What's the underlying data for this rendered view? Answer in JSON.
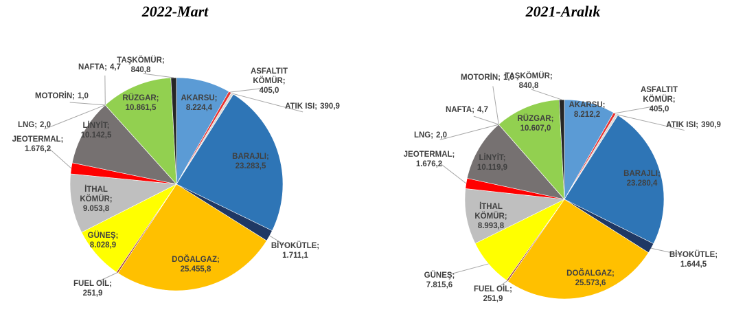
{
  "chart_data": [
    {
      "type": "pie",
      "title": "2022-Mart",
      "categories": [
        "AKARSU;",
        "ASFALTIT KÖMÜR;",
        "ATIK ISI;",
        "BARAJLI;",
        "BİYOKÜTLE;",
        "DOĞALGAZ;",
        "FUEL OİL;",
        "GÜNEŞ;",
        "İTHAL KÖMÜR;",
        "JEOTERMAL;",
        "LİNYİT;",
        "LNG;",
        "MOTORİN;",
        "NAFTA;",
        "RÜZGAR;",
        "TAŞKÖMÜR;"
      ],
      "values": [
        8224.4,
        405.0,
        390.9,
        23283.5,
        1711.1,
        25455.8,
        251.9,
        8028.9,
        9053.8,
        1676.2,
        10142.5,
        2.0,
        1.0,
        4.7,
        10861.5,
        840.8
      ],
      "value_labels": [
        "8.224,4",
        "405,0",
        "390,9",
        "23.283,5",
        "1.711,1",
        "25.455,8",
        "251,9",
        "8.028,9",
        "9.053,8",
        "1.676,2",
        "10.142,5",
        "2,0",
        "1,0",
        "4,7",
        "10.861,5",
        "840,8"
      ],
      "colors": [
        "#5b9bd5",
        "#e8312f",
        "#d9d9d9",
        "#2e75b6",
        "#1f3864",
        "#ffc000",
        "#a5403c",
        "#ffff00",
        "#bfbfbf",
        "#ff0000",
        "#767171",
        "#8faadc",
        "#c9c9c9",
        "#a9d18e",
        "#92d050",
        "#262626"
      ]
    },
    {
      "type": "pie",
      "title": "2021-Aralık",
      "categories": [
        "AKARSU;",
        "ASFALTIT KÖMÜR;",
        "ATIK ISI;",
        "BARAJLI;",
        "BİYOKÜTLE;",
        "DOĞALGAZ;",
        "FUEL OİL;",
        "GÜNEŞ;",
        "İTHAL KÖMÜR;",
        "JEOTERMAL;",
        "LİNYİT;",
        "LNG;",
        "MOTORİN;",
        "NAFTA;",
        "RÜZGAR;",
        "TAŞKÖMÜR;"
      ],
      "values": [
        8212.2,
        405.0,
        390.9,
        23280.4,
        1644.5,
        25573.6,
        251.9,
        7815.6,
        8993.8,
        1676.2,
        10119.9,
        2.0,
        1.0,
        4.7,
        10607.0,
        840.8
      ],
      "value_labels": [
        "8.212,2",
        "405,0",
        "390,9",
        "23.280,4",
        "1.644,5",
        "25.573,6",
        "251,9",
        "7.815,6",
        "8.993,8",
        "1.676,2",
        "10.119,9",
        "2,0",
        "1,0",
        "4,7",
        "10.607,0",
        "840,8"
      ],
      "colors": [
        "#5b9bd5",
        "#e8312f",
        "#d9d9d9",
        "#2e75b6",
        "#1f3864",
        "#ffc000",
        "#a5403c",
        "#ffff00",
        "#bfbfbf",
        "#ff0000",
        "#767171",
        "#8faadc",
        "#c9c9c9",
        "#a9d18e",
        "#92d050",
        "#262626"
      ]
    }
  ]
}
